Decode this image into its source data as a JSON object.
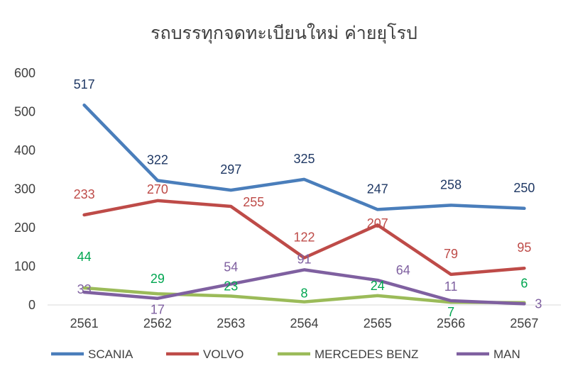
{
  "chart_data": {
    "type": "line",
    "title": "รถบรรทุกจดทะเบียนใหม่ ค่ายยุโรป",
    "xlabel": "",
    "ylabel": "",
    "categories": [
      "2561",
      "2562",
      "2563",
      "2564",
      "2565",
      "2566",
      "2567"
    ],
    "ylim": [
      0,
      600
    ],
    "yticks": [
      "0",
      "100",
      "200",
      "300",
      "400",
      "500",
      "600"
    ],
    "grid": false,
    "legend": "bottom",
    "series": [
      {
        "name": "SCANIA",
        "color": "#4A7EBB",
        "label_color": "#1F3864",
        "values": [
          517,
          322,
          297,
          325,
          247,
          258,
          250
        ]
      },
      {
        "name": "VOLVO",
        "color": "#BE4B48",
        "label_color": "#BE4B48",
        "values": [
          233,
          270,
          255,
          122,
          207,
          79,
          95
        ]
      },
      {
        "name": "MERCEDES BENZ",
        "color": "#9BBB59",
        "label_color": "#00A650",
        "values": [
          44,
          29,
          23,
          8,
          24,
          7,
          6
        ]
      },
      {
        "name": "MAN",
        "color": "#7F60A0",
        "label_color": "#7F60A0",
        "values": [
          33,
          17,
          54,
          91,
          64,
          11,
          3
        ]
      }
    ]
  }
}
